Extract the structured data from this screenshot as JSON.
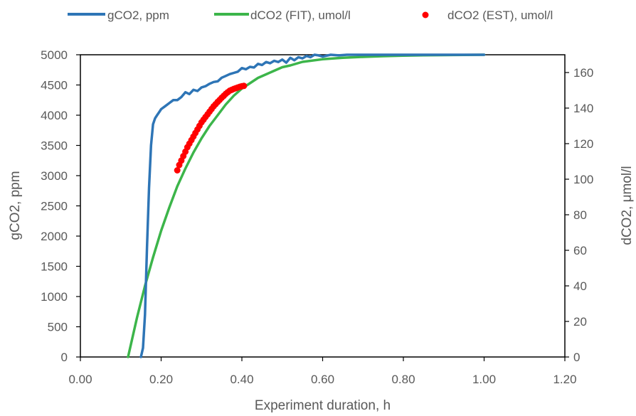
{
  "chart_data": {
    "type": "line",
    "xlabel": "Experiment duration, h",
    "ylabel": "gCO2, ppm",
    "y2label": "dCO2, μmol/l",
    "xlim": [
      0,
      1.2
    ],
    "ylim": [
      0,
      5000
    ],
    "y2lim": [
      0,
      170
    ],
    "x_ticks": [
      "0.00",
      "0.20",
      "0.40",
      "0.60",
      "0.80",
      "1.00",
      "1.20"
    ],
    "y_ticks": [
      "0",
      "500",
      "1000",
      "1500",
      "2000",
      "2500",
      "3000",
      "3500",
      "4000",
      "4500",
      "5000"
    ],
    "y2_ticks": [
      "0",
      "20",
      "40",
      "60",
      "80",
      "100",
      "120",
      "140",
      "160"
    ],
    "grid": false,
    "legend_position": "top",
    "series": [
      {
        "name": "gCO2, ppm",
        "axis": "left",
        "style": "line",
        "color": "#2E75B6",
        "x": [
          0.15,
          0.155,
          0.16,
          0.165,
          0.17,
          0.175,
          0.18,
          0.185,
          0.19,
          0.195,
          0.2,
          0.21,
          0.22,
          0.23,
          0.24,
          0.25,
          0.26,
          0.27,
          0.28,
          0.29,
          0.3,
          0.31,
          0.32,
          0.33,
          0.34,
          0.35,
          0.36,
          0.37,
          0.38,
          0.39,
          0.4,
          0.41,
          0.42,
          0.43,
          0.44,
          0.45,
          0.46,
          0.47,
          0.48,
          0.49,
          0.5,
          0.51,
          0.52,
          0.53,
          0.54,
          0.55,
          0.56,
          0.57,
          0.58,
          0.59,
          0.6,
          0.62,
          0.64,
          0.66,
          0.68,
          0.7,
          0.75,
          0.8,
          0.85,
          0.9,
          0.95,
          1.0
        ],
        "y": [
          0,
          150,
          700,
          1800,
          2800,
          3500,
          3850,
          3950,
          4000,
          4050,
          4100,
          4150,
          4200,
          4250,
          4250,
          4300,
          4380,
          4350,
          4420,
          4400,
          4460,
          4480,
          4520,
          4550,
          4560,
          4620,
          4650,
          4680,
          4700,
          4720,
          4780,
          4760,
          4800,
          4790,
          4850,
          4830,
          4880,
          4860,
          4900,
          4880,
          4920,
          4870,
          4950,
          4910,
          4960,
          4940,
          4980,
          4960,
          5000,
          4990,
          4970,
          5000,
          4990,
          5000,
          5000,
          5000,
          5000,
          5000,
          5000,
          5000,
          5000,
          5000
        ]
      },
      {
        "name": "dCO2 (FIT), umol/l",
        "axis": "right",
        "style": "line",
        "color": "#3CB54A",
        "x": [
          0.118,
          0.14,
          0.16,
          0.18,
          0.2,
          0.22,
          0.24,
          0.26,
          0.28,
          0.3,
          0.32,
          0.34,
          0.36,
          0.38,
          0.4,
          0.42,
          0.44,
          0.46,
          0.48,
          0.5,
          0.52,
          0.55,
          0.6,
          0.65,
          0.7,
          0.75,
          0.8,
          0.85,
          0.9,
          0.95,
          1.0
        ],
        "y": [
          0,
          22,
          40,
          56,
          71,
          84,
          96,
          106,
          115,
          123,
          130,
          136,
          142,
          147,
          151,
          154,
          157,
          159,
          161,
          163,
          164,
          166,
          167.5,
          168.3,
          168.8,
          169.2,
          169.5,
          169.7,
          169.8,
          169.9,
          170
        ]
      },
      {
        "name": "dCO2 (EST), umol/l",
        "axis": "right",
        "style": "points",
        "color": "#FF0000",
        "x": [
          0.24,
          0.245,
          0.25,
          0.255,
          0.26,
          0.265,
          0.27,
          0.275,
          0.28,
          0.285,
          0.29,
          0.295,
          0.3,
          0.305,
          0.31,
          0.315,
          0.32,
          0.325,
          0.33,
          0.335,
          0.34,
          0.345,
          0.35,
          0.355,
          0.36,
          0.365,
          0.37,
          0.375,
          0.38,
          0.385,
          0.39,
          0.395,
          0.4,
          0.405
        ],
        "y": [
          105,
          108,
          110.5,
          113,
          115.5,
          118,
          120,
          122,
          124,
          126,
          128,
          130,
          132,
          133.5,
          135,
          136.5,
          138,
          139.5,
          141,
          142.2,
          143.5,
          144.6,
          145.8,
          146.9,
          148,
          148.9,
          149.8,
          150.3,
          150.8,
          151.2,
          151.6,
          152,
          152.3,
          152.5
        ]
      }
    ]
  }
}
